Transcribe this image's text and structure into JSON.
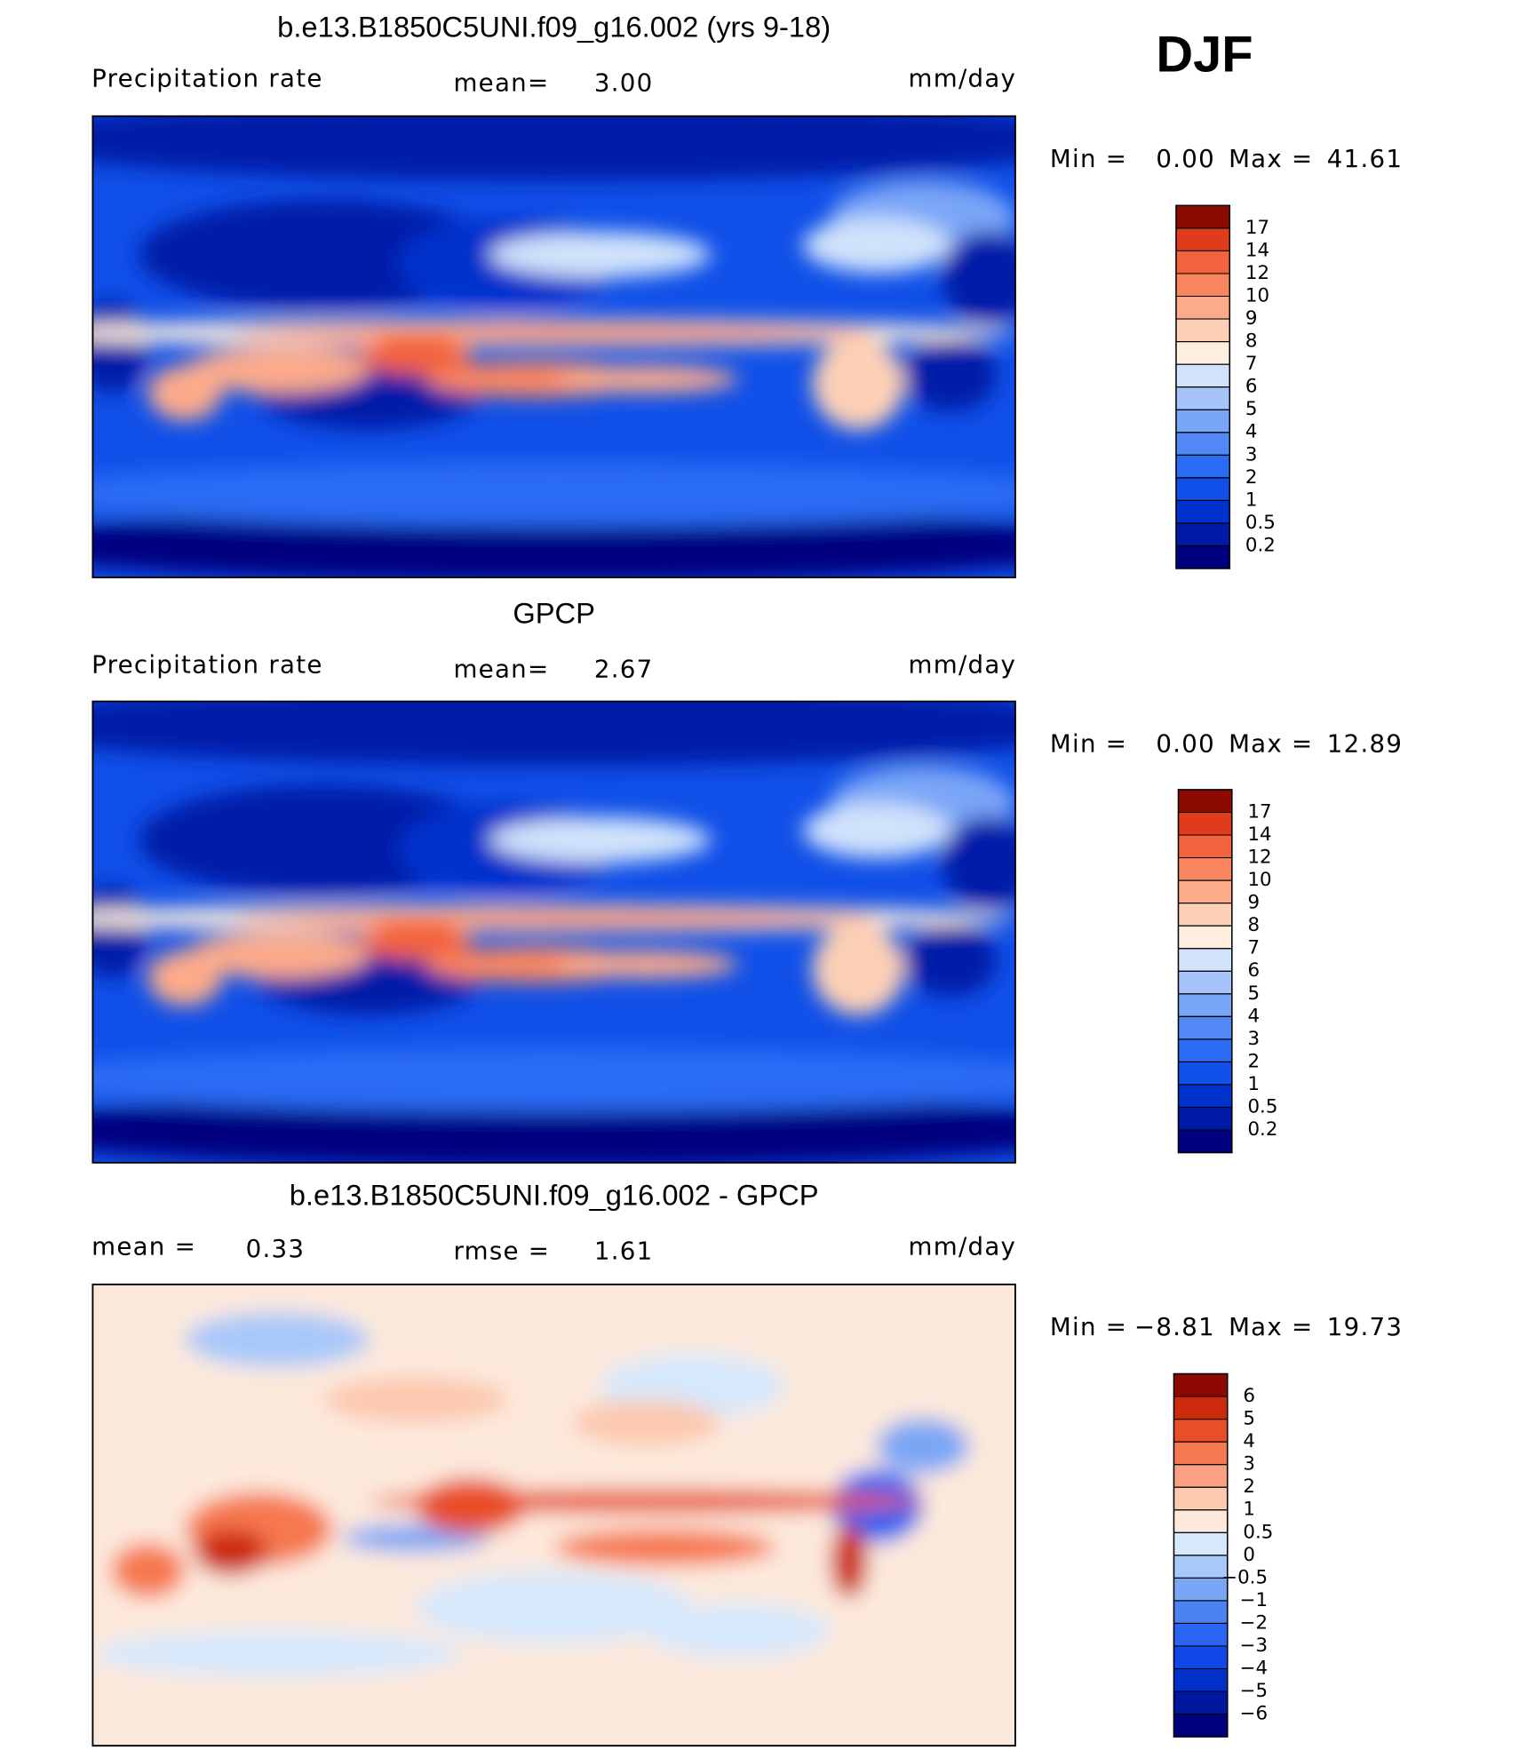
{
  "header": {
    "label": "DJF"
  },
  "chart_data": [
    {
      "type": "contour-map",
      "title": "b.e13.B1850C5UNI.f09_g16.002 (yrs 9-18)",
      "left_label": "Precipitation rate",
      "mean_label": "mean=",
      "mean": "3.00",
      "units": "mm/day",
      "min_label": "Min =",
      "min": "0.00",
      "max_label": "Max =",
      "max": "41.61",
      "levels": [
        0.2,
        0.5,
        1,
        2,
        3,
        4,
        5,
        6,
        7,
        8,
        9,
        10,
        12,
        14,
        17
      ],
      "colors": [
        "#00007f",
        "#001aa8",
        "#0033cc",
        "#1050e8",
        "#2a6cf5",
        "#5288f5",
        "#7aa6f7",
        "#a6c4fa",
        "#d0e3fb",
        "#fdeee0",
        "#fdd0b5",
        "#fcab8a",
        "#f98660",
        "#f2623c",
        "#e03c1c",
        "#8c0a00"
      ]
    },
    {
      "type": "contour-map",
      "title": "GPCP",
      "left_label": "Precipitation rate",
      "mean_label": "mean=",
      "mean": "2.67",
      "units": "mm/day",
      "min_label": "Min =",
      "min": "0.00",
      "max_label": "Max =",
      "max": "12.89",
      "levels": [
        0.2,
        0.5,
        1,
        2,
        3,
        4,
        5,
        6,
        7,
        8,
        9,
        10,
        12,
        14,
        17
      ],
      "colors": [
        "#00007f",
        "#001aa8",
        "#0033cc",
        "#1050e8",
        "#2a6cf5",
        "#5288f5",
        "#7aa6f7",
        "#a6c4fa",
        "#d0e3fb",
        "#fdeee0",
        "#fdd0b5",
        "#fcab8a",
        "#f98660",
        "#f2623c",
        "#e03c1c",
        "#8c0a00"
      ]
    },
    {
      "type": "contour-map",
      "title": "b.e13.B1850C5UNI.f09_g16.002 - GPCP",
      "left_label": "mean =",
      "left_value": "0.33",
      "mean_label": "rmse =",
      "mean": "1.61",
      "units": "mm/day",
      "min_label": "Min =",
      "min": "−8.81",
      "max_label": "Max =",
      "max": "19.73",
      "levels": [
        {
          "value": -6,
          "label": "−6"
        },
        {
          "value": -5,
          "label": "−5"
        },
        {
          "value": -4,
          "label": "−4"
        },
        {
          "value": -3,
          "label": "−3"
        },
        {
          "value": -2,
          "label": "−2"
        },
        {
          "value": -1,
          "label": "−1"
        },
        {
          "value": -0.5,
          "label": "−0.5"
        },
        0,
        0.5,
        1,
        2,
        3,
        4,
        5,
        6
      ],
      "colors": [
        "#00007f",
        "#0018a0",
        "#0030c8",
        "#1048e8",
        "#2a64f0",
        "#4a82f2",
        "#7aa6f5",
        "#a8c8fa",
        "#d6e8fc",
        "#fde9dc",
        "#fcc8ae",
        "#fba080",
        "#f67850",
        "#e84e28",
        "#cc2a0c",
        "#8c0800"
      ]
    }
  ]
}
